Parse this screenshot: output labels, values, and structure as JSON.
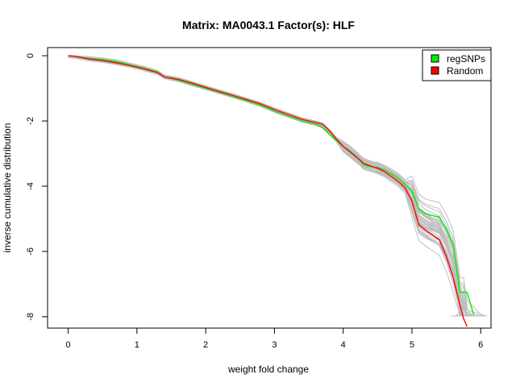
{
  "chart_data": {
    "type": "line",
    "title": "Matrix: MA0043.1 Factor(s): HLF",
    "xlabel": "weight fold change",
    "ylabel": "inverse cumulative distribution",
    "xlim": [
      -0.3,
      6.15
    ],
    "ylim": [
      -8.35,
      0.25
    ],
    "xticks": [
      0,
      1,
      2,
      3,
      4,
      5,
      6
    ],
    "yticks": [
      0,
      -2,
      -4,
      -6,
      -8
    ],
    "grid": false,
    "legend": {
      "position": "top-right",
      "entries": [
        {
          "label": "regSNPs",
          "color": "#00ee00"
        },
        {
          "label": "Random",
          "color": "#ff0000"
        }
      ]
    },
    "background_color": "#bebebe",
    "series": [
      {
        "name": "regSNPs",
        "color": "#00ee00",
        "x": [
          0.0,
          0.1,
          0.3,
          0.5,
          0.7,
          0.9,
          1.1,
          1.3,
          1.4,
          1.6,
          1.8,
          2.0,
          2.2,
          2.4,
          2.6,
          2.8,
          3.0,
          3.2,
          3.4,
          3.6,
          3.7,
          3.8,
          3.9,
          4.0,
          4.1,
          4.2,
          4.3,
          4.4,
          4.5,
          4.6,
          4.7,
          4.8,
          4.9,
          5.0,
          5.1,
          5.2,
          5.3,
          5.4,
          5.5,
          5.6,
          5.7,
          5.8,
          5.9
        ],
        "y": [
          0.0,
          -0.02,
          -0.08,
          -0.12,
          -0.18,
          -0.28,
          -0.38,
          -0.5,
          -0.65,
          -0.75,
          -0.88,
          -1.0,
          -1.12,
          -1.25,
          -1.38,
          -1.52,
          -1.7,
          -1.85,
          -2.0,
          -2.1,
          -2.2,
          -2.4,
          -2.6,
          -2.78,
          -2.92,
          -3.1,
          -3.35,
          -3.4,
          -3.42,
          -3.5,
          -3.62,
          -3.75,
          -3.95,
          -4.15,
          -4.7,
          -4.85,
          -4.9,
          -4.95,
          -5.3,
          -5.8,
          -7.25,
          -7.25,
          -7.95
        ]
      },
      {
        "name": "Random",
        "color": "#ff0000",
        "x": [
          0.0,
          0.1,
          0.3,
          0.5,
          0.7,
          0.9,
          1.1,
          1.3,
          1.4,
          1.6,
          1.8,
          2.0,
          2.2,
          2.4,
          2.6,
          2.8,
          3.0,
          3.2,
          3.4,
          3.6,
          3.7,
          3.8,
          3.9,
          4.0,
          4.1,
          4.2,
          4.3,
          4.4,
          4.5,
          4.6,
          4.7,
          4.8,
          4.9,
          5.0,
          5.1,
          5.2,
          5.3,
          5.4,
          5.5,
          5.6,
          5.7,
          5.75,
          5.8
        ],
        "y": [
          0.0,
          -0.02,
          -0.1,
          -0.15,
          -0.22,
          -0.3,
          -0.4,
          -0.52,
          -0.65,
          -0.72,
          -0.84,
          -0.97,
          -1.1,
          -1.22,
          -1.35,
          -1.48,
          -1.65,
          -1.8,
          -1.95,
          -2.05,
          -2.1,
          -2.3,
          -2.55,
          -2.78,
          -2.95,
          -3.12,
          -3.3,
          -3.38,
          -3.45,
          -3.55,
          -3.7,
          -3.85,
          -4.05,
          -4.45,
          -5.18,
          -5.35,
          -5.5,
          -5.65,
          -6.15,
          -6.8,
          -7.65,
          -8.05,
          -8.3
        ]
      }
    ]
  }
}
